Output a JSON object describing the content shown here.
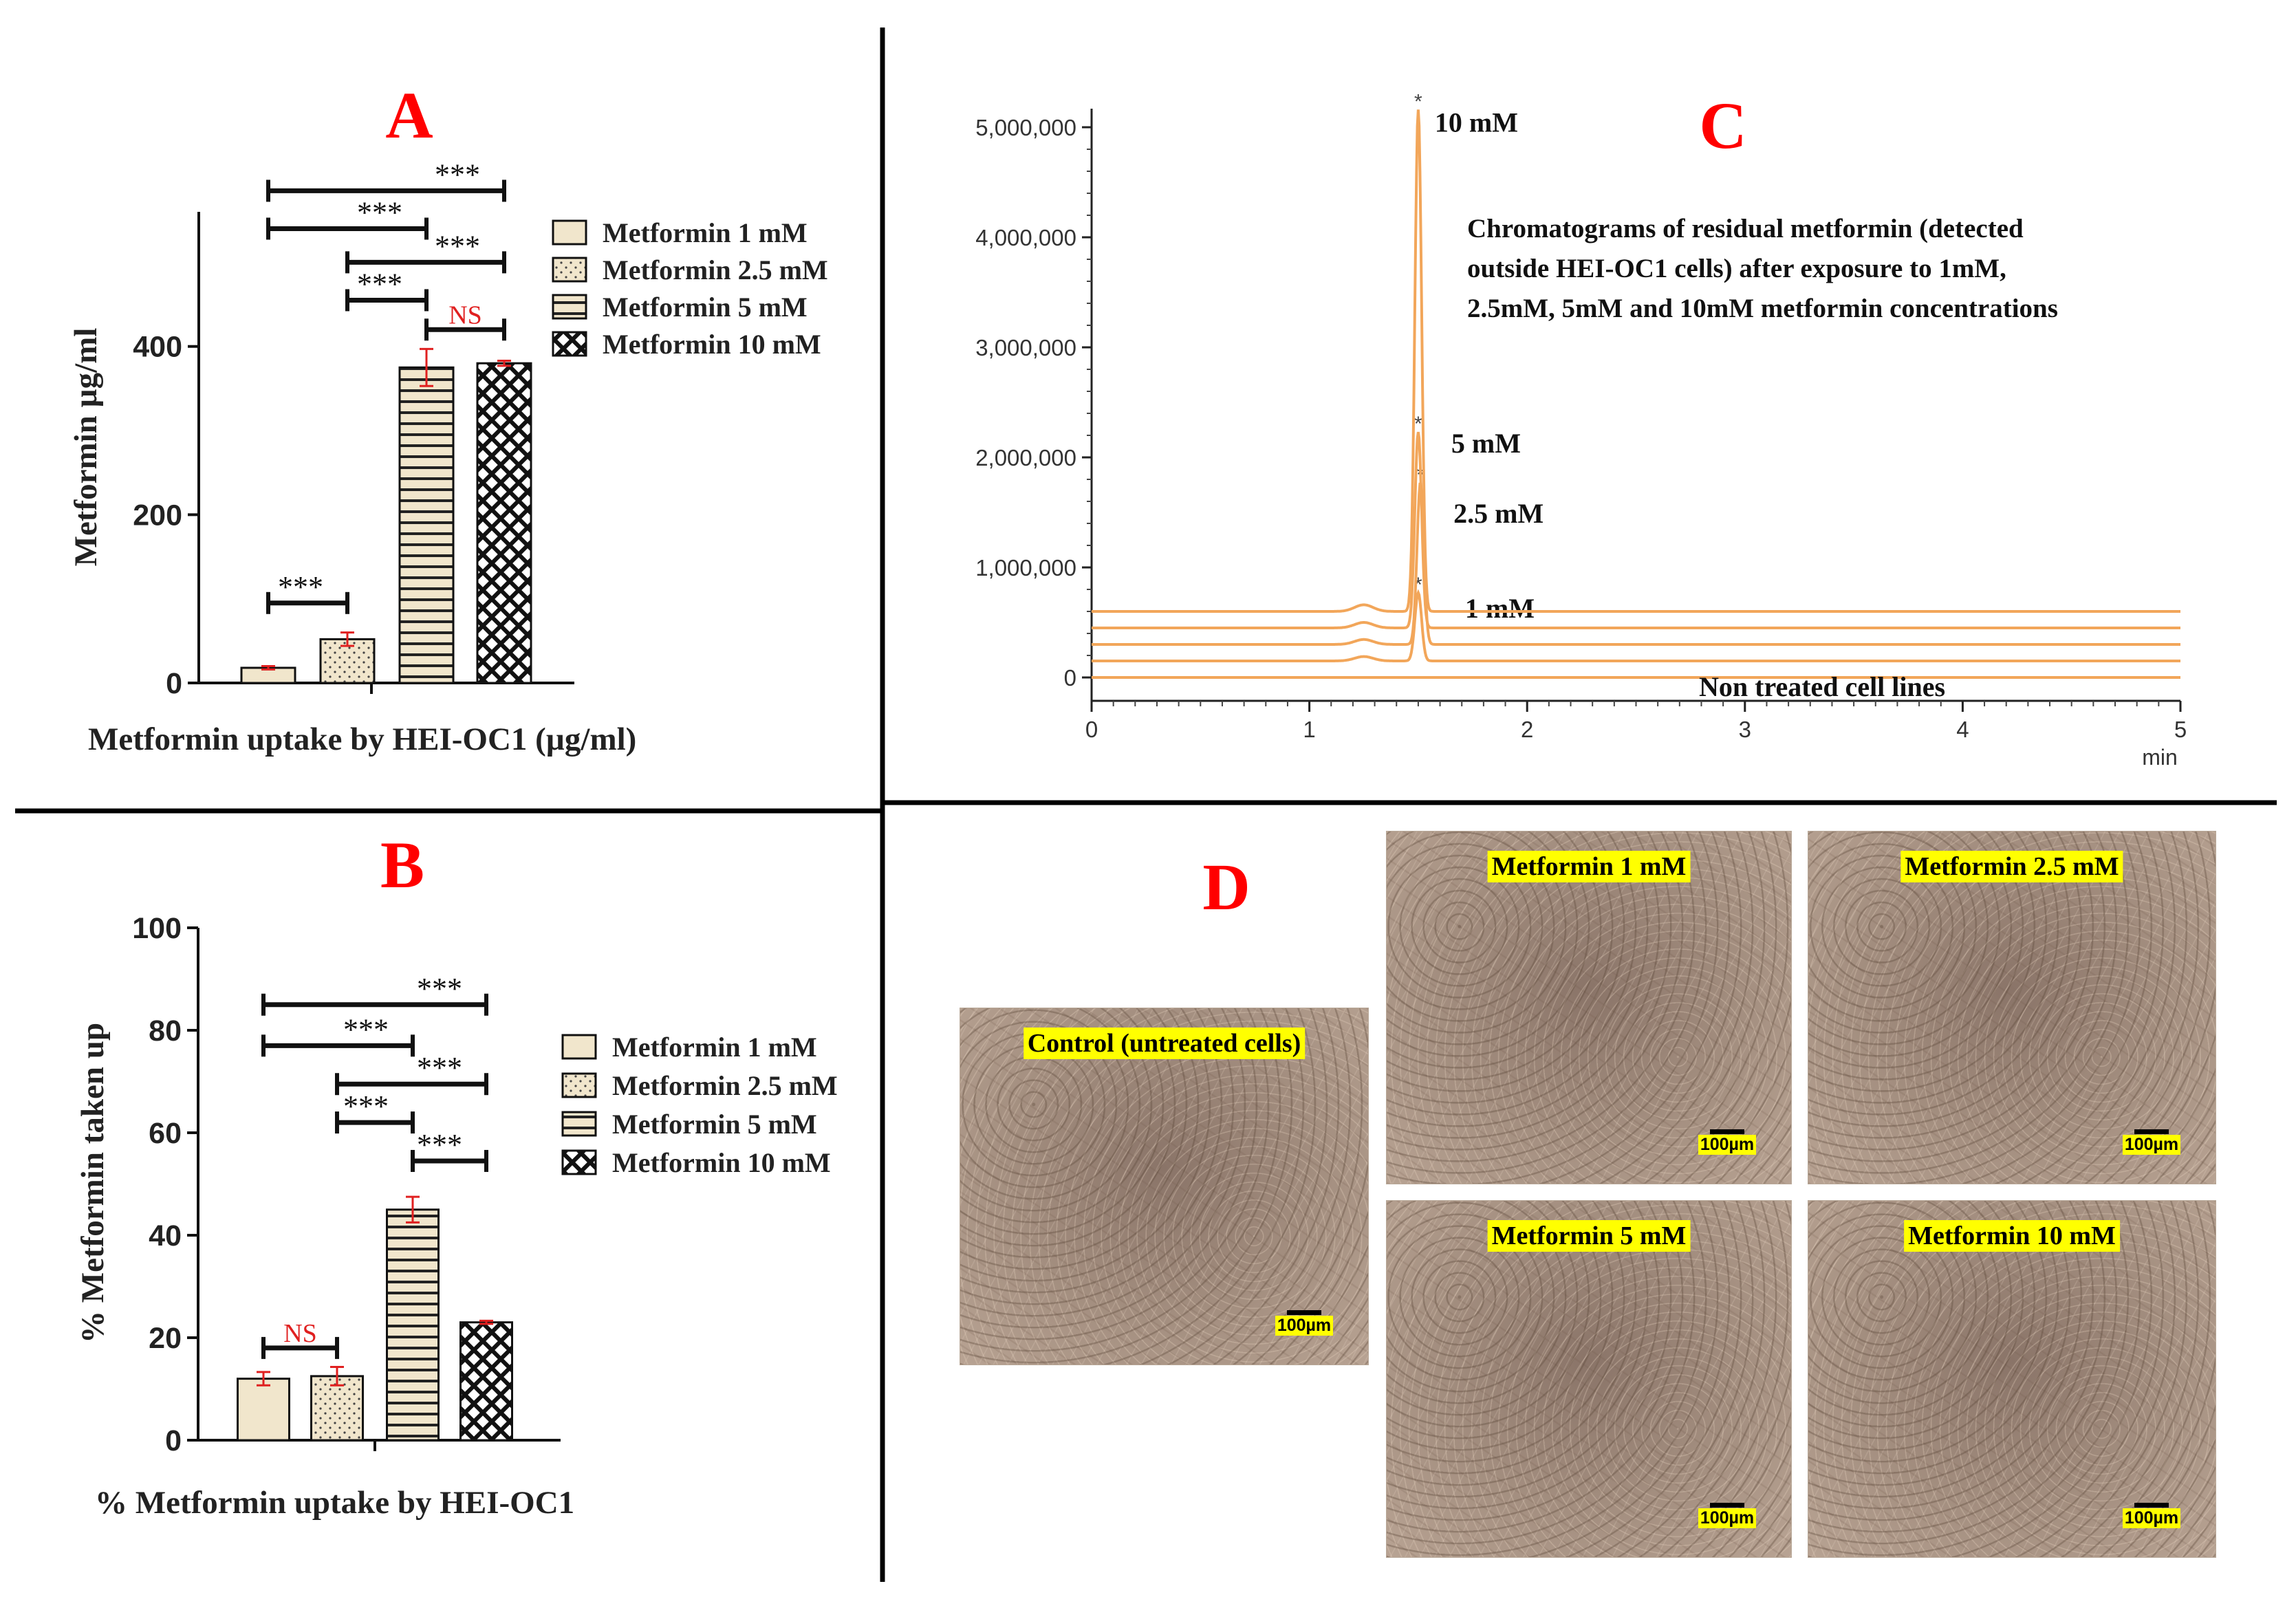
{
  "colors": {
    "panel_letter": "#ff0000",
    "bar_fill": "#f1e6cc",
    "error_bar": "#e02020",
    "ns_text": "#e02020",
    "trace": "#f2a65a",
    "label_highlight": "#ffff00",
    "divider": "#000000"
  },
  "panels": {
    "A": {
      "letter": "A"
    },
    "B": {
      "letter": "B"
    },
    "C": {
      "letter": "C"
    },
    "D": {
      "letter": "D"
    }
  },
  "chart_data": [
    {
      "id": "A",
      "type": "bar",
      "xlabel": "Metformin uptake by HEI-OC1 (µg/ml)",
      "ylabel": "Metformin µg/ml",
      "ylim": [
        0,
        560
      ],
      "yticks": [
        "0",
        "200",
        "400"
      ],
      "ytick_values": [
        0,
        200,
        400
      ],
      "categories": [
        "Metformin 1 mM",
        "Metformin 2.5 mM",
        "Metformin 5 mM",
        "Metformin 10 mM"
      ],
      "values": [
        18,
        52,
        375,
        380
      ],
      "errors": [
        2,
        8,
        22,
        3
      ],
      "patterns": [
        "plain",
        "dots",
        "hlines",
        "cross"
      ],
      "legend_position": "top-right",
      "significance": [
        {
          "from": 0,
          "to": 1,
          "level": 95,
          "label": "***"
        },
        {
          "from": 2,
          "to": 3,
          "level": 420,
          "label": "NS"
        },
        {
          "from": 1,
          "to": 2,
          "level": 455,
          "label": "***"
        },
        {
          "from": 1,
          "to": 3,
          "level": 500,
          "label": "***"
        },
        {
          "from": 0,
          "to": 2,
          "level": 540,
          "label": "***"
        },
        {
          "from": 0,
          "to": 3,
          "level": 585,
          "label": "***"
        }
      ]
    },
    {
      "id": "B",
      "type": "bar",
      "xlabel": "% Metformin uptake by HEI-OC1",
      "ylabel": "% Metformin taken up",
      "ylim": [
        0,
        100
      ],
      "yticks": [
        "0",
        "20",
        "40",
        "60",
        "80",
        "100"
      ],
      "ytick_values": [
        0,
        20,
        40,
        60,
        80,
        100
      ],
      "categories": [
        "Metformin 1 mM",
        "Metformin 2.5 mM",
        "Metformin 5 mM",
        "Metformin 10 mM"
      ],
      "values": [
        12,
        12.5,
        45,
        23
      ],
      "errors": [
        1.3,
        1.8,
        2.5,
        0.3
      ],
      "patterns": [
        "plain",
        "dots",
        "hlines",
        "cross"
      ],
      "legend_position": "top-right",
      "significance": [
        {
          "from": 0,
          "to": 1,
          "level": 18,
          "label": "NS"
        },
        {
          "from": 2,
          "to": 3,
          "level": 54.5,
          "label": "***"
        },
        {
          "from": 1,
          "to": 2,
          "level": 62,
          "label": "***"
        },
        {
          "from": 1,
          "to": 3,
          "level": 69.5,
          "label": "***"
        },
        {
          "from": 0,
          "to": 2,
          "level": 77,
          "label": "***"
        },
        {
          "from": 0,
          "to": 3,
          "level": 85,
          "label": "***"
        }
      ]
    },
    {
      "id": "C",
      "type": "line",
      "xlabel": "min",
      "ylabel": "",
      "xlim": [
        0,
        5
      ],
      "ylim": [
        -150000,
        5200000
      ],
      "xticks": [
        "0",
        "1",
        "2",
        "3",
        "4",
        "5"
      ],
      "xtick_values": [
        0,
        1,
        2,
        3,
        4,
        5
      ],
      "yticks": [
        "0",
        "1,000,000",
        "2,000,000",
        "3,000,000",
        "4,000,000",
        "5,000,000"
      ],
      "ytick_values": [
        0,
        1000000,
        2000000,
        3000000,
        4000000,
        5000000
      ],
      "description": "Chromatograms of residual metformin (detected outside HEI-OC1 cells) after exposure to 1mM, 2.5mM, 5mM and 10mM metformin concentrations",
      "series": [
        {
          "name": "Non treated cell lines",
          "baseline": 0,
          "peak_x": 1.5,
          "peak_height": 0,
          "bump": 0
        },
        {
          "name": "1 mM",
          "baseline": 150000,
          "peak_x": 1.5,
          "peak_height": 620000,
          "bump": 40000
        },
        {
          "name": "2.5 mM",
          "baseline": 300000,
          "peak_x": 1.51,
          "peak_height": 1470000,
          "bump": 45000
        },
        {
          "name": "5 mM",
          "baseline": 450000,
          "peak_x": 1.5,
          "peak_height": 1780000,
          "bump": 50000
        },
        {
          "name": "10 mM",
          "baseline": 600000,
          "peak_x": 1.5,
          "peak_height": 4560000,
          "bump": 60000
        }
      ],
      "peak_marker": "*"
    }
  ],
  "micrographs": {
    "control": {
      "label": "Control (untreated cells)",
      "scale": "100µm"
    },
    "m1": {
      "label": "Metformin 1 mM",
      "scale": "100µm"
    },
    "m25": {
      "label": "Metformin 2.5 mM",
      "scale": "100µm"
    },
    "m5": {
      "label": "Metformin 5 mM",
      "scale": "100µm"
    },
    "m10": {
      "label": "Metformin 10 mM",
      "scale": "100µm"
    }
  }
}
